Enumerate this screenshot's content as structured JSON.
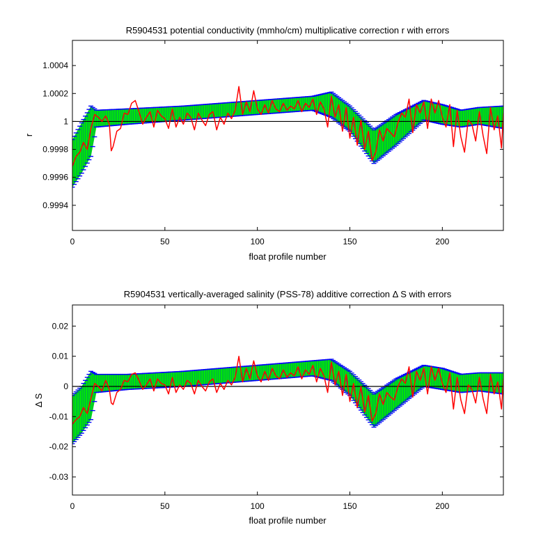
{
  "colors": {
    "background": "#ffffff",
    "band_fill": "#00ee00",
    "error_bars": "#0000ff",
    "measured_line": "#ff0000",
    "reference_line": "#000000"
  },
  "chart_data": [
    {
      "type": "line",
      "title": "R5904531 potential conductivity (mmho/cm) multiplicative correction r with errors",
      "xlabel": "float profile number",
      "ylabel": "r",
      "xlim": [
        0,
        233
      ],
      "ylim": [
        0.99922,
        1.00058
      ],
      "xticks": [
        0,
        50,
        100,
        150,
        200
      ],
      "xtick_labels": [
        "0",
        "50",
        "100",
        "150",
        "200"
      ],
      "yticks": [
        0.9994,
        0.9996,
        0.9998,
        1,
        1.0002,
        1.0004
      ],
      "ytick_labels": [
        "0.9994",
        "0.9996",
        "0.9998",
        "1",
        "1.0002",
        "1.0004"
      ],
      "reference_y": 1,
      "grid": false,
      "legend": "none",
      "series": [
        {
          "role": "fit_center",
          "x": [
            0,
            5,
            10,
            13,
            30,
            60,
            90,
            110,
            130,
            140,
            150,
            163,
            175,
            190,
            200,
            210,
            220,
            233
          ],
          "y": [
            0.9997,
            0.99981,
            0.99993,
            1.00002,
            1.00003,
            1.00006,
            1.00009,
            1.00011,
            1.00013,
            1.00012,
            1.00002,
            0.99983,
            0.99994,
            1.00008,
            1.00005,
            1.00002,
            1.00004,
            1.00003
          ]
        },
        {
          "role": "error_upper",
          "x": [
            0,
            5,
            10,
            13,
            30,
            60,
            90,
            110,
            130,
            140,
            150,
            163,
            175,
            190,
            200,
            210,
            220,
            233
          ],
          "y": [
            0.99987,
            0.99999,
            1.00011,
            1.00008,
            1.00009,
            1.00011,
            1.00014,
            1.00016,
            1.00018,
            1.00021,
            1.00011,
            0.99994,
            1.00005,
            1.00015,
            1.00012,
            1.00008,
            1.0001,
            1.00011
          ]
        },
        {
          "role": "error_lower",
          "x": [
            0,
            5,
            10,
            13,
            30,
            60,
            90,
            110,
            130,
            140,
            150,
            163,
            175,
            190,
            200,
            210,
            220,
            233
          ],
          "y": [
            0.99953,
            0.99963,
            0.99975,
            0.99996,
            0.99998,
            1.00001,
            1.00004,
            1.00006,
            1.00008,
            1.00003,
            0.99993,
            0.9997,
            0.99983,
            1.00001,
            0.99998,
            0.99996,
            0.99998,
            0.99995
          ]
        },
        {
          "role": "measured",
          "x": [
            0,
            2,
            4,
            6,
            8,
            10,
            12,
            14,
            16,
            18,
            20,
            21,
            22,
            24,
            26,
            28,
            30,
            32,
            34,
            36,
            38,
            40,
            42,
            44,
            46,
            48,
            50,
            52,
            54,
            56,
            58,
            60,
            62,
            64,
            66,
            68,
            70,
            72,
            74,
            76,
            78,
            80,
            82,
            84,
            86,
            88,
            90,
            92,
            94,
            96,
            98,
            100,
            102,
            104,
            106,
            108,
            110,
            112,
            114,
            116,
            118,
            120,
            122,
            124,
            126,
            128,
            130,
            132,
            134,
            136,
            138,
            140,
            142,
            144,
            146,
            148,
            150,
            152,
            154,
            156,
            158,
            160,
            162,
            164,
            166,
            168,
            170,
            172,
            174,
            176,
            178,
            180,
            182,
            184,
            186,
            188,
            190,
            192,
            194,
            196,
            198,
            200,
            202,
            204,
            206,
            208,
            210,
            212,
            214,
            216,
            218,
            220,
            222,
            224,
            226,
            228,
            230,
            232,
            233
          ],
          "y": [
            0.99968,
            0.99975,
            0.99978,
            0.99985,
            0.9998,
            0.99995,
            1.00005,
            1.00003,
            1.0,
            1.00004,
            0.99998,
            0.99979,
            0.99982,
            0.99993,
            0.99995,
            1.00006,
            1.00005,
            1.00013,
            1.00015,
            1.00007,
            0.99998,
            1.00003,
            1.00007,
            0.99996,
            1.00008,
            1.00004,
            1.00002,
            0.99995,
            1.00009,
            0.99996,
            1.00003,
            0.99998,
            1.00006,
            1.00003,
            0.99994,
            1.00006,
            1.00001,
            0.99997,
            1.00005,
            1.00007,
            0.99994,
            1.00003,
            0.99998,
            1.00006,
            1.00002,
            1.00008,
            1.00025,
            1.00005,
            1.00014,
            1.00007,
            1.00022,
            1.00009,
            1.00005,
            1.00012,
            1.00006,
            1.00015,
            1.00009,
            1.00007,
            1.00013,
            1.00008,
            1.00011,
            1.00009,
            1.00015,
            1.00007,
            1.00013,
            1.0001,
            1.00016,
            1.00005,
            1.00014,
            1.00009,
            0.99996,
            1.00018,
            1.00003,
            1.00012,
            0.99993,
            1.0001,
            0.99988,
            1.00003,
            0.99983,
            1.00001,
            0.9998,
            0.99993,
            0.99972,
            0.99978,
            0.99994,
            0.99986,
            0.99995,
            0.99992,
            0.99989,
            0.99999,
            1.00006,
            1.00003,
            1.00016,
            0.99992,
            1.00012,
            1.00006,
            1.00014,
            0.99995,
            1.00016,
            1.00006,
            1.00015,
            1.00003,
            0.99996,
            1.00012,
            0.99982,
            1.00008,
            0.99989,
            0.99978,
            1.00001,
            0.99998,
            0.99986,
            1.00007,
            0.9999,
            0.99977,
            1.0001,
            0.99994,
            1.00004,
            0.99981,
            1.00006
          ]
        }
      ]
    },
    {
      "type": "line",
      "title": "R5904531 vertically-averaged salinity (PSS-78) additive correction Δ S with errors",
      "xlabel": "float profile number",
      "ylabel": "Δ S",
      "xlim": [
        0,
        233
      ],
      "ylim": [
        -0.036,
        0.027
      ],
      "xticks": [
        0,
        50,
        100,
        150,
        200
      ],
      "xtick_labels": [
        "0",
        "50",
        "100",
        "150",
        "200"
      ],
      "yticks": [
        -0.03,
        -0.02,
        -0.01,
        0,
        0.01,
        0.02
      ],
      "ytick_labels": [
        "-0.03",
        "-0.02",
        "-0.01",
        "0",
        "0.01",
        "0.02"
      ],
      "reference_y": 0,
      "grid": false,
      "legend": "none",
      "series": [
        {
          "role": "fit_center",
          "x": [
            0,
            5,
            10,
            13,
            30,
            60,
            90,
            110,
            130,
            140,
            150,
            163,
            175,
            190,
            200,
            210,
            220,
            233
          ],
          "y": [
            -0.011,
            -0.0075,
            -0.003,
            0.001,
            0.0015,
            0.0025,
            0.004,
            0.005,
            0.006,
            0.0055,
            0.001,
            -0.0075,
            -0.0025,
            0.0035,
            0.0025,
            0.001,
            0.0015,
            0.001
          ]
        },
        {
          "role": "error_upper",
          "x": [
            0,
            5,
            10,
            13,
            30,
            60,
            90,
            110,
            130,
            140,
            150,
            163,
            175,
            190,
            200,
            210,
            220,
            233
          ],
          "y": [
            -0.003,
            0.0,
            0.005,
            0.004,
            0.004,
            0.005,
            0.0065,
            0.0075,
            0.0085,
            0.009,
            0.005,
            -0.0025,
            0.0025,
            0.007,
            0.006,
            0.004,
            0.0045,
            0.0045
          ]
        },
        {
          "role": "error_lower",
          "x": [
            0,
            5,
            10,
            13,
            30,
            60,
            90,
            110,
            130,
            140,
            150,
            163,
            175,
            190,
            200,
            210,
            220,
            233
          ],
          "y": [
            -0.019,
            -0.0155,
            -0.011,
            -0.002,
            -0.001,
            0.0,
            0.0015,
            0.0025,
            0.0035,
            0.002,
            -0.003,
            -0.0135,
            -0.0075,
            0.0,
            -0.001,
            -0.002,
            -0.0015,
            -0.0025
          ]
        },
        {
          "role": "measured",
          "x": [
            0,
            2,
            4,
            6,
            8,
            10,
            12,
            14,
            16,
            18,
            20,
            21,
            22,
            24,
            26,
            28,
            30,
            32,
            34,
            36,
            38,
            40,
            42,
            44,
            46,
            48,
            50,
            52,
            54,
            56,
            58,
            60,
            62,
            64,
            66,
            68,
            70,
            72,
            74,
            76,
            78,
            80,
            82,
            84,
            86,
            88,
            90,
            92,
            94,
            96,
            98,
            100,
            102,
            104,
            106,
            108,
            110,
            112,
            114,
            116,
            118,
            120,
            122,
            124,
            126,
            128,
            130,
            132,
            134,
            136,
            138,
            140,
            142,
            144,
            146,
            148,
            150,
            152,
            154,
            156,
            158,
            160,
            162,
            164,
            166,
            168,
            170,
            172,
            174,
            176,
            178,
            180,
            182,
            184,
            186,
            188,
            190,
            192,
            194,
            196,
            198,
            200,
            202,
            204,
            206,
            208,
            210,
            212,
            214,
            216,
            218,
            220,
            222,
            224,
            226,
            228,
            230,
            232,
            233
          ],
          "y": [
            -0.0125,
            -0.011,
            -0.01,
            -0.007,
            -0.009,
            -0.004,
            0.001,
            0.0,
            -0.0015,
            0.002,
            -0.001,
            -0.0055,
            -0.006,
            -0.002,
            -0.001,
            0.002,
            0.0015,
            0.004,
            0.0045,
            0.002,
            -0.001,
            0.0005,
            0.0025,
            -0.0015,
            0.0025,
            0.001,
            0.0005,
            -0.0025,
            0.003,
            -0.002,
            0.0005,
            -0.001,
            0.002,
            0.001,
            -0.0025,
            0.002,
            0.0,
            -0.0015,
            0.0015,
            0.0025,
            -0.002,
            0.001,
            -0.001,
            0.002,
            0.0005,
            0.003,
            0.01,
            0.0015,
            0.006,
            0.0025,
            0.0085,
            0.0035,
            0.0015,
            0.005,
            0.002,
            0.006,
            0.0035,
            0.0025,
            0.0055,
            0.003,
            0.0045,
            0.0035,
            0.0065,
            0.0025,
            0.0055,
            0.004,
            0.007,
            0.0015,
            0.006,
            0.0035,
            -0.002,
            0.008,
            0.0005,
            0.005,
            -0.003,
            0.004,
            -0.005,
            0.001,
            -0.007,
            0.0,
            -0.0085,
            -0.003,
            -0.0115,
            -0.009,
            -0.0025,
            -0.006,
            -0.002,
            -0.0035,
            -0.0045,
            0.0,
            0.0025,
            0.001,
            0.0065,
            -0.0035,
            0.005,
            0.002,
            0.006,
            -0.0025,
            0.0065,
            0.002,
            0.006,
            0.001,
            -0.002,
            0.0045,
            -0.0075,
            0.003,
            -0.0045,
            -0.009,
            0.0005,
            -0.001,
            -0.0055,
            0.003,
            -0.004,
            -0.009,
            0.004,
            -0.0025,
            0.0015,
            -0.0075,
            0.0025
          ]
        }
      ]
    }
  ]
}
